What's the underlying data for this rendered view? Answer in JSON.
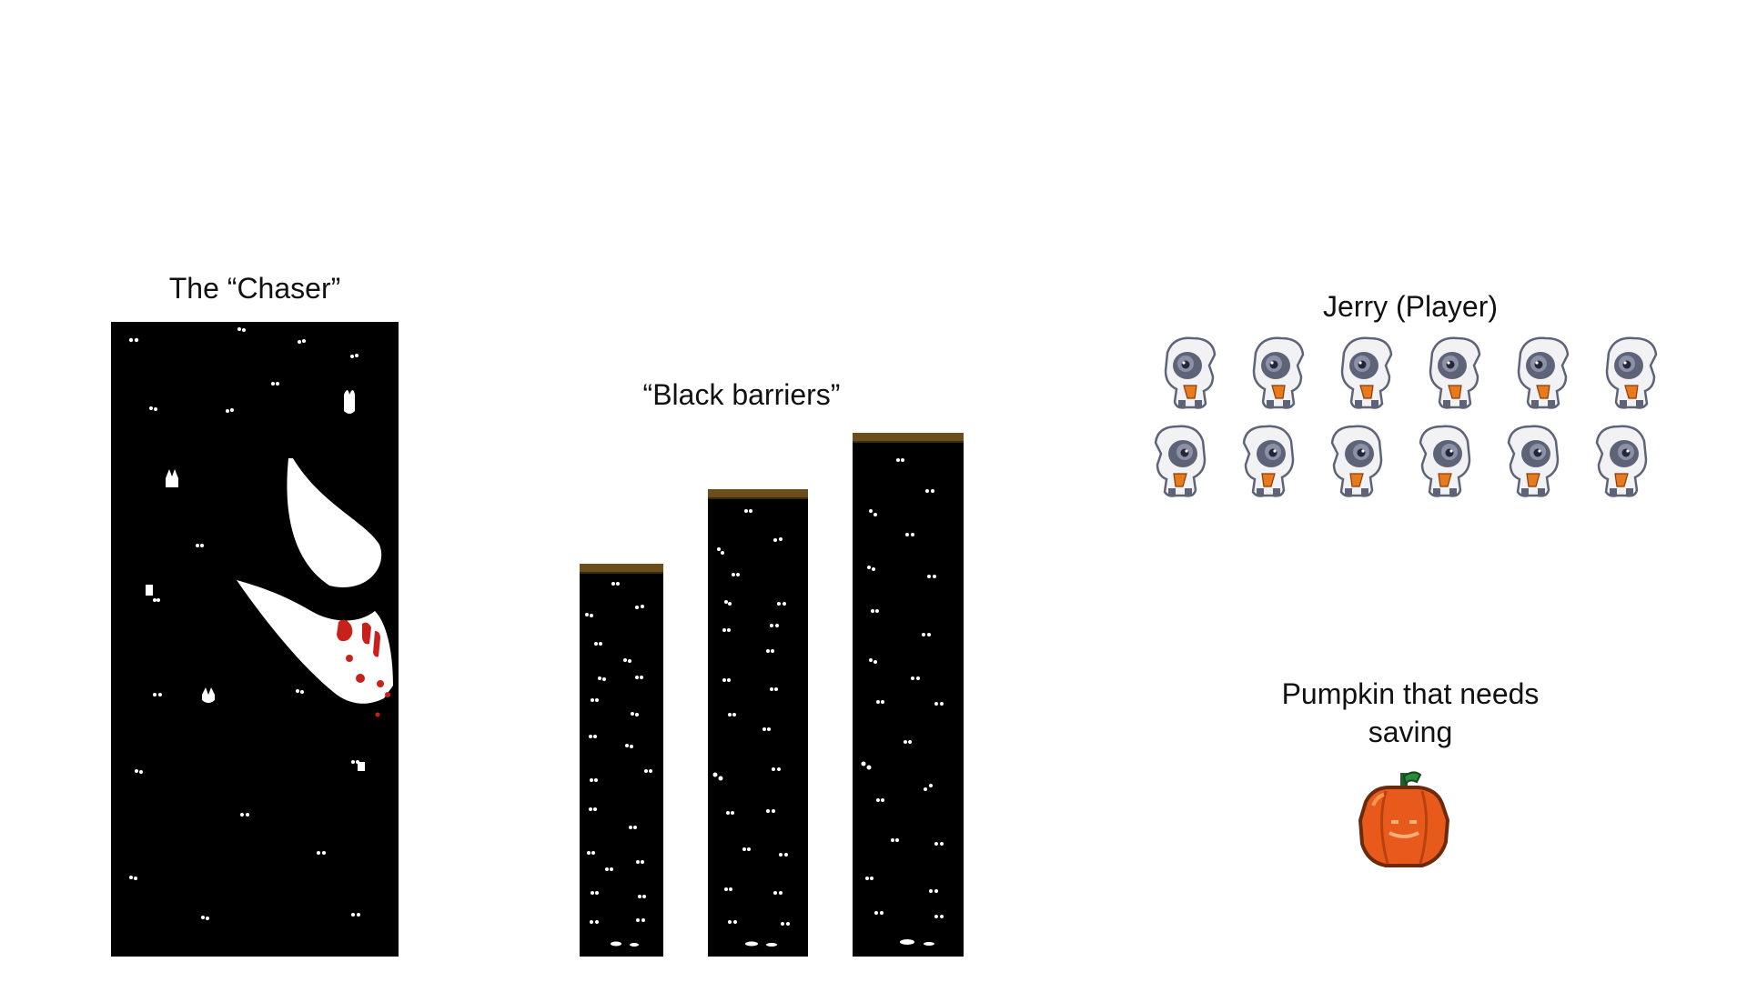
{
  "labels": {
    "chaser": "The “Chaser”",
    "barriers": "“Black barriers”",
    "player": "Jerry (Player)",
    "pumpkin": "Pumpkin that needs saving"
  },
  "sprites": {
    "chaser": {
      "icon": "ghost-monster-icon",
      "background": "#000000",
      "accent": "#c8201b"
    },
    "barriers": {
      "count": 3,
      "icon": "black-barrier-pillar-icon",
      "cap_color": "#6b4e1e"
    },
    "player": {
      "icon": "jerry-player-sprite-icon",
      "frames": 12,
      "rows": 2,
      "frames_per_row": 6,
      "body_color": "#f2f2f4",
      "head_color": "#5e6478",
      "scarf_color": "#e77a1c"
    },
    "pumpkin": {
      "icon": "pumpkin-icon",
      "body_color": "#e85a1c",
      "stem_color": "#2c8a3a"
    }
  }
}
